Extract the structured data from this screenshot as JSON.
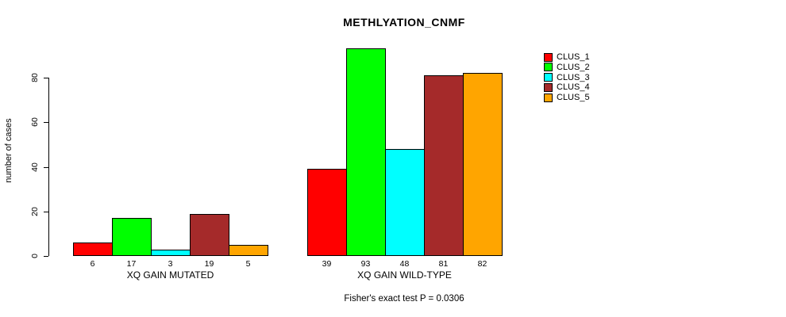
{
  "chart_data": {
    "type": "bar",
    "title": "METHLYATION_CNMF",
    "ylabel": "number of cases",
    "yticks": [
      0,
      20,
      40,
      60,
      80
    ],
    "ylim": [
      0,
      94
    ],
    "grid": false,
    "legend_position": "right-outside-top",
    "series": [
      {
        "name": "CLUS_1",
        "color": "#FF0000"
      },
      {
        "name": "CLUS_2",
        "color": "#00FF00"
      },
      {
        "name": "CLUS_3",
        "color": "#00FFFF"
      },
      {
        "name": "CLUS_4",
        "color": "#A52A2A"
      },
      {
        "name": "CLUS_5",
        "color": "#FFA500"
      }
    ],
    "groups": [
      {
        "label": "XQ GAIN MUTATED",
        "values": [
          6,
          17,
          3,
          19,
          5
        ]
      },
      {
        "label": "XQ GAIN WILD-TYPE",
        "values": [
          39,
          93,
          48,
          81,
          82
        ]
      }
    ],
    "bar_value_labels_shown": true,
    "annotation": "Fisher's exact test P = 0.0306"
  }
}
